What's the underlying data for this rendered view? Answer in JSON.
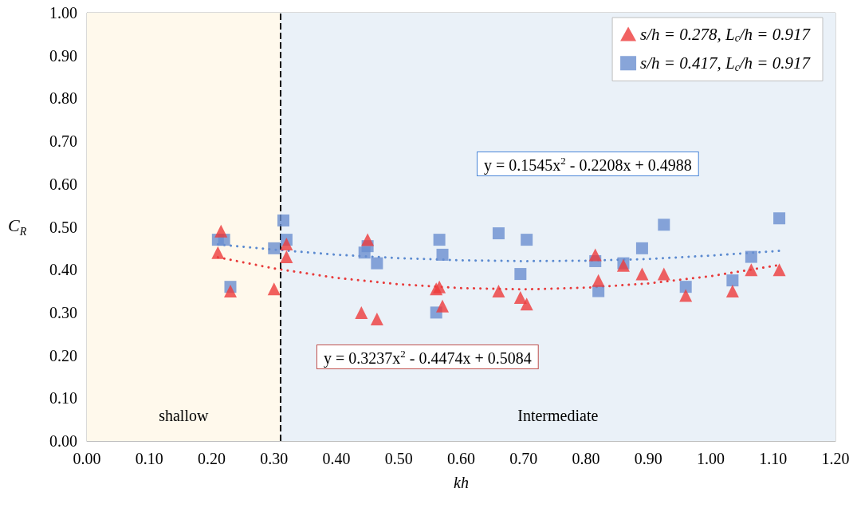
{
  "chart_data": {
    "type": "scatter",
    "xlabel": "kh",
    "ylabel": "C$_{R}$",
    "xlim": [
      0,
      1.2
    ],
    "ylim": [
      0,
      1
    ],
    "xticks": [
      {
        "value": 0,
        "label": "0.00"
      },
      {
        "value": 0.1,
        "label": "0.10"
      },
      {
        "value": 0.2,
        "label": "0.20"
      },
      {
        "value": 0.3,
        "label": "0.30"
      },
      {
        "value": 0.4,
        "label": "0.40"
      },
      {
        "value": 0.5,
        "label": "0.50"
      },
      {
        "value": 0.6,
        "label": "0.60"
      },
      {
        "value": 0.7,
        "label": "0.70"
      },
      {
        "value": 0.8,
        "label": "0.80"
      },
      {
        "value": 0.9,
        "label": "0.90"
      },
      {
        "value": 1,
        "label": "1.00"
      },
      {
        "value": 1.1,
        "label": "1.10"
      },
      {
        "value": 1.2,
        "label": "1.20"
      }
    ],
    "yticks": [
      {
        "value": 0,
        "label": "0.00"
      },
      {
        "value": 0.1,
        "label": "0.10"
      },
      {
        "value": 0.2,
        "label": "0.20"
      },
      {
        "value": 0.3,
        "label": "0.30"
      },
      {
        "value": 0.4,
        "label": "0.40"
      },
      {
        "value": 0.5,
        "label": "0.50"
      },
      {
        "value": 0.6,
        "label": "0.60"
      },
      {
        "value": 0.7,
        "label": "0.70"
      },
      {
        "value": 0.8,
        "label": "0.80"
      },
      {
        "value": 0.9,
        "label": "0.90"
      },
      {
        "value": 1,
        "label": "1.00"
      }
    ],
    "grid": true,
    "legend": "top right",
    "series": [
      {
        "name": "s/h = 0.278, L$_{c}$/h = 0.917",
        "marker": "triangle",
        "color": "#ee3b3b",
        "x": [
          0.21,
          0.215,
          0.23,
          0.3,
          0.32,
          0.32,
          0.44,
          0.45,
          0.465,
          0.56,
          0.565,
          0.57,
          0.66,
          0.695,
          0.705,
          0.815,
          0.82,
          0.86,
          0.89,
          0.925,
          0.96,
          1.035,
          1.065,
          1.11
        ],
        "values": [
          0.44,
          0.49,
          0.35,
          0.355,
          0.46,
          0.43,
          0.3,
          0.47,
          0.285,
          0.355,
          0.36,
          0.315,
          0.35,
          0.335,
          0.32,
          0.435,
          0.375,
          0.41,
          0.39,
          0.39,
          0.34,
          0.35,
          0.4,
          0.4
        ]
      },
      {
        "name": "s/h = 0.417, L$_{c}$/h = 0.917",
        "marker": "square",
        "color": "#6a8fd0",
        "x": [
          0.21,
          0.22,
          0.23,
          0.3,
          0.315,
          0.32,
          0.445,
          0.45,
          0.465,
          0.56,
          0.565,
          0.57,
          0.66,
          0.695,
          0.705,
          0.815,
          0.82,
          0.86,
          0.89,
          0.925,
          0.96,
          1.035,
          1.065,
          1.11
        ],
        "values": [
          0.47,
          0.47,
          0.36,
          0.45,
          0.515,
          0.47,
          0.44,
          0.455,
          0.415,
          0.3,
          0.47,
          0.435,
          0.485,
          0.39,
          0.47,
          0.42,
          0.35,
          0.415,
          0.45,
          0.505,
          0.36,
          0.375,
          0.43,
          0.52
        ]
      },
      {
        "type": "line",
        "marker": "none",
        "line_style": "dotted",
        "color": "#e83a3a",
        "x": [
          0.21,
          0.3,
          0.4,
          0.5,
          0.6,
          0.7,
          0.8,
          0.9,
          1.0,
          1.11
        ],
        "values": [
          0.429,
          0.403,
          0.381,
          0.366,
          0.357,
          0.354,
          0.358,
          0.368,
          0.385,
          0.411
        ]
      },
      {
        "type": "line",
        "marker": "none",
        "line_style": "dotted",
        "color": "#5b8ad0",
        "x": [
          0.21,
          0.3,
          0.4,
          0.5,
          0.6,
          0.7,
          0.8,
          0.9,
          1.0,
          1.11
        ],
        "values": [
          0.459,
          0.447,
          0.435,
          0.427,
          0.422,
          0.42,
          0.421,
          0.425,
          0.433,
          0.444
        ]
      }
    ],
    "bands": [
      {
        "axis": "x",
        "from": 0,
        "to": 0.31,
        "label": "shallow",
        "color": "#fff9ec"
      },
      {
        "axis": "x",
        "from": 0.31,
        "to": 1.2,
        "label": "Intermediate",
        "color": "#eaf1f8"
      }
    ],
    "ref_lines": [
      {
        "axis": "x",
        "value": 0.31,
        "line_style": "dashed",
        "color": "#000000"
      }
    ],
    "annotations": [
      "y = 0.1545x$^{2}$ - 0.2208x + 0.4988",
      "y = 0.3237x$^{2}$ - 0.4474x + 0.5084"
    ]
  }
}
